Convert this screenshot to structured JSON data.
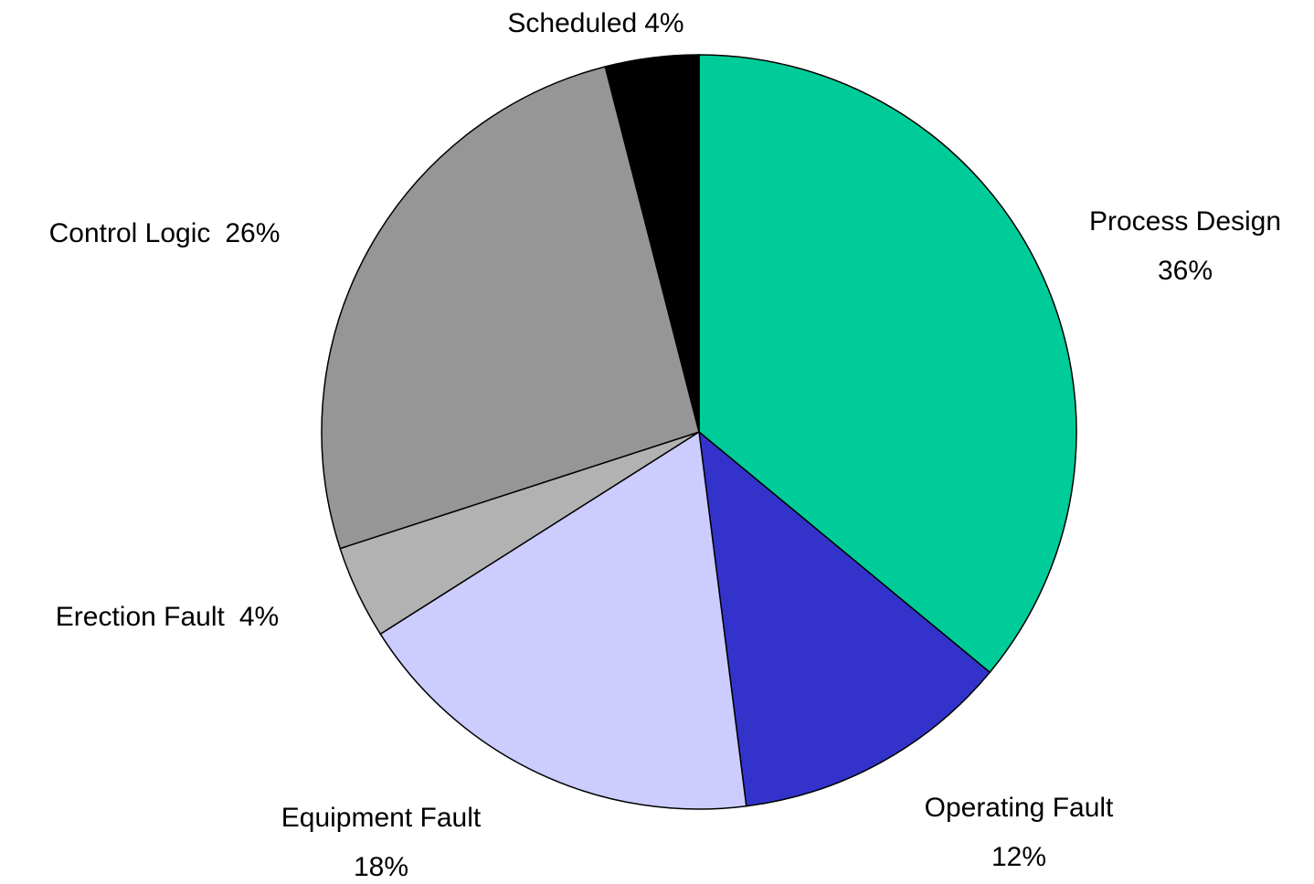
{
  "chart_data": {
    "type": "pie",
    "categories": [
      "Process Design",
      "Operating Fault",
      "Equipment Fault",
      "Erection Fault",
      "Control Logic",
      "Scheduled"
    ],
    "values": [
      36,
      12,
      18,
      4,
      26,
      4
    ],
    "value_labels": [
      "36%",
      "12%",
      "18%",
      "4%",
      "26%",
      "4%"
    ],
    "colors": [
      "#00cc99",
      "#3333cc",
      "#ccccff",
      "#b2b2b2",
      "#969696",
      "#000000"
    ]
  }
}
